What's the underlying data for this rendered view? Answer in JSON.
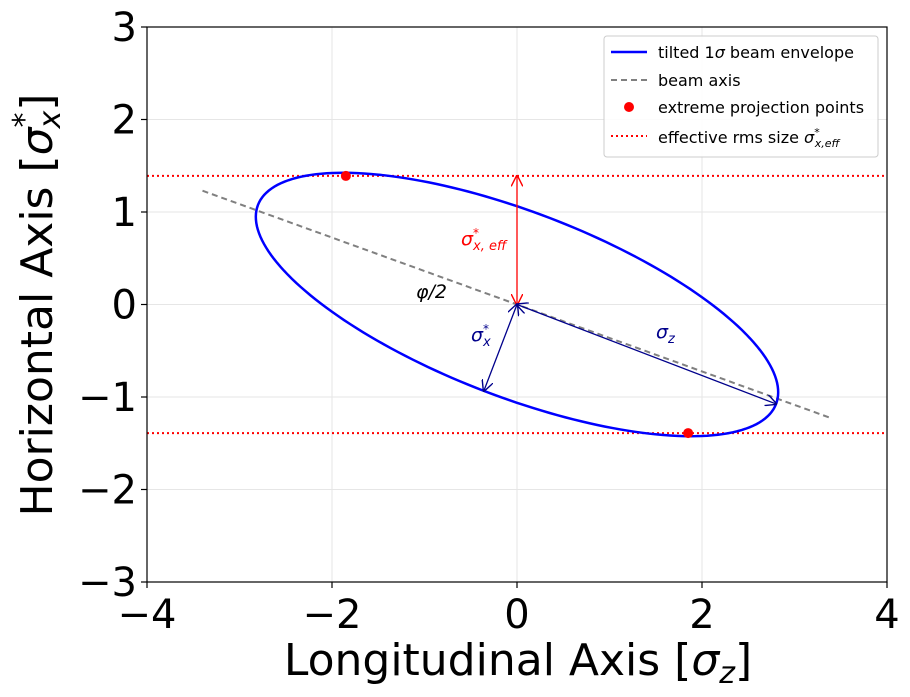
{
  "chart_data": {
    "type": "line",
    "title": "",
    "xlabel_main": "Longitudinal Axis [",
    "xlabel_sym": "σ",
    "xlabel_sub": "z",
    "xlabel_end": "]",
    "ylabel_main": "Horizontal Axis [",
    "ylabel_sym": "σ",
    "ylabel_sub": "x",
    "ylabel_sup": "*",
    "ylabel_end": "]",
    "xlim": [
      -4,
      4
    ],
    "ylim": [
      -3,
      3
    ],
    "xticks": [
      -4,
      -2,
      0,
      2,
      4
    ],
    "yticks": [
      -3,
      -2,
      -1,
      0,
      1,
      2,
      3
    ],
    "xtick_labels": [
      "−4",
      "−2",
      "0",
      "2",
      "4"
    ],
    "ytick_labels": [
      "−3",
      "−2",
      "−1",
      "0",
      "1",
      "2",
      "3"
    ],
    "grid": true,
    "legend_position": "upper right",
    "series": [
      {
        "name": "tilted 1σ beam envelope",
        "kind": "ellipse",
        "color": "#0000ff",
        "semi_major": 3.0,
        "semi_minor": 1.0,
        "tilt_deg": -21.0
      },
      {
        "name": "beam axis",
        "kind": "line",
        "color": "#808080",
        "x": [
          -3.4,
          3.4
        ],
        "y": [
          1.23,
          -1.23
        ]
      },
      {
        "name": "extreme projection points",
        "kind": "points",
        "color": "#ff0000",
        "x": [
          -1.85,
          1.85
        ],
        "y": [
          1.39,
          -1.39
        ]
      },
      {
        "name": "effective rms size σ*x,eff",
        "kind": "hlines",
        "color": "#ff0000",
        "y": [
          1.39,
          -1.39
        ]
      }
    ],
    "legend": {
      "envelope_pre": "tilted 1",
      "envelope_sym": "σ",
      "envelope_post": " beam envelope",
      "axis": "beam axis",
      "points": "extreme projection points",
      "rms_pre": "effective rms size ",
      "rms_sym": "σ",
      "rms_sup": "*",
      "rms_sub": "x,eff"
    },
    "annotations": {
      "sigma_x_eff": {
        "sym": "σ",
        "sup": "*",
        "sub": "x, eff",
        "color": "#ff0000"
      },
      "sigma_x": {
        "sym": "σ",
        "sup": "*",
        "sub": "x",
        "color": "#00008b"
      },
      "sigma_z": {
        "sym": "σ",
        "sub": "z",
        "color": "#00008b"
      },
      "phi_half": {
        "text": "φ/2",
        "color": "#000000"
      }
    }
  }
}
